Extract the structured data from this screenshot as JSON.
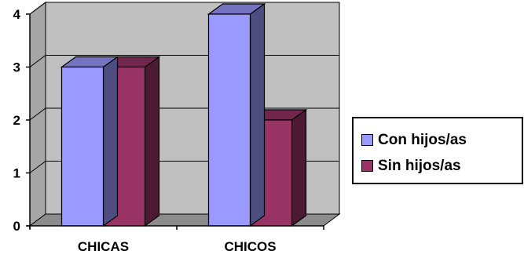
{
  "chart_data": {
    "type": "bar",
    "categories": [
      "CHICAS",
      "CHICOS"
    ],
    "series": [
      {
        "name": "Con hijos/as",
        "values": [
          3,
          4
        ],
        "color": "#9999ff"
      },
      {
        "name": "Sin hijos/as",
        "values": [
          3,
          2
        ],
        "color": "#993366"
      }
    ],
    "ylim": [
      0,
      4
    ],
    "yticks": [
      0,
      1,
      2,
      3,
      4
    ],
    "grid": true,
    "three_d": true,
    "plot_background": "#c0c0c0",
    "legend_position": "right"
  }
}
